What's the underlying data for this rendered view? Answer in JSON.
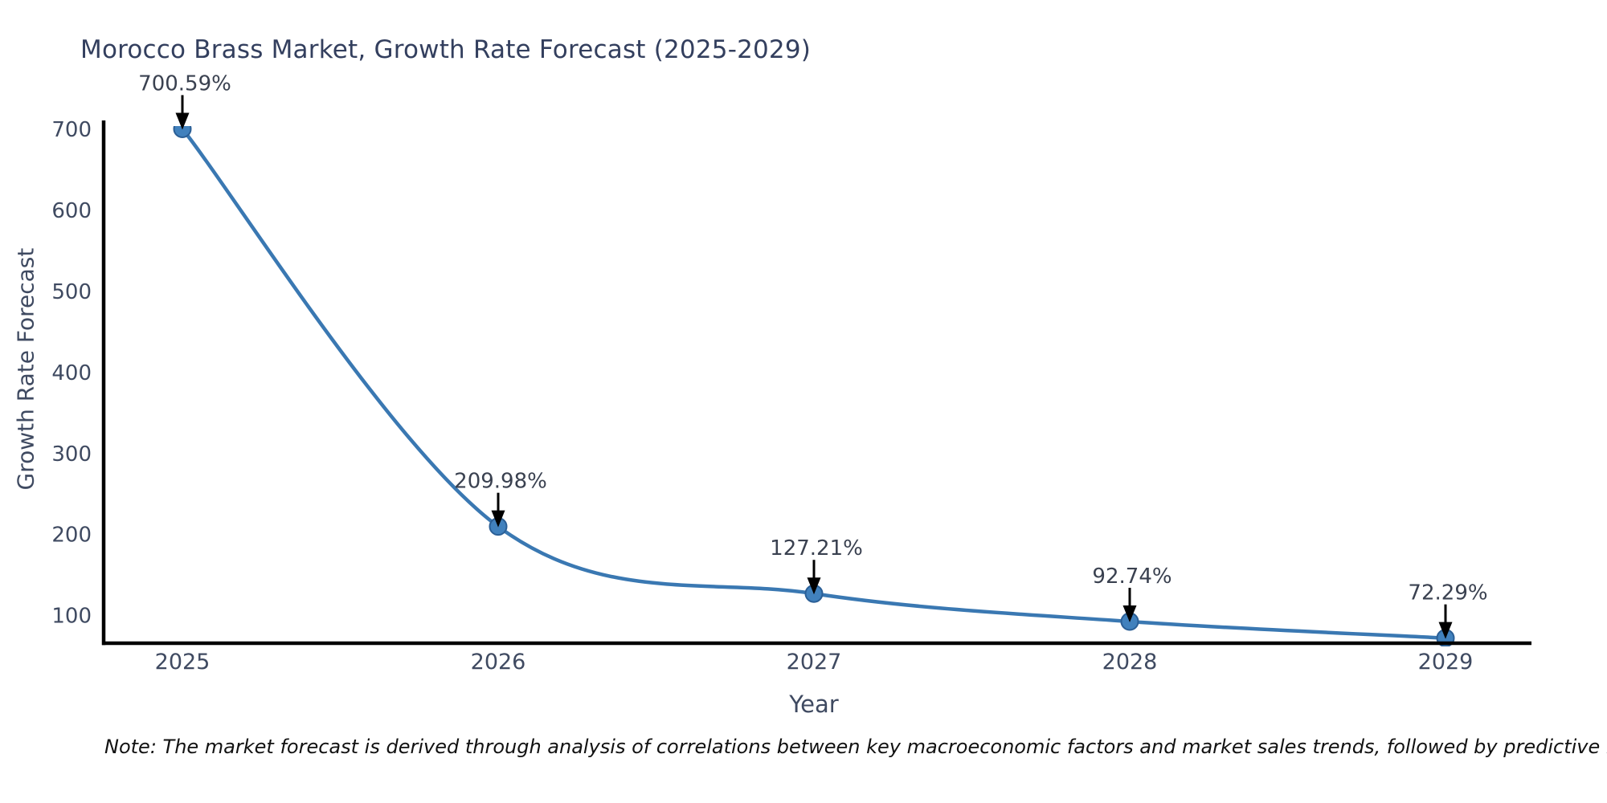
{
  "title": "Morocco Brass Market, Growth Rate Forecast (2025-2029)",
  "note": "Note: The market forecast is derived through analysis of correlations between key macroeconomic factors and market sales trends, followed by predictive modeling to project future sales.",
  "chart_data": {
    "type": "line",
    "title": "Morocco Brass Market, Growth Rate Forecast (2025-2029)",
    "xlabel": "Year",
    "ylabel": "Growth Rate Forecast",
    "categories": [
      "2025",
      "2026",
      "2027",
      "2028",
      "2029"
    ],
    "x": [
      2025,
      2026,
      2027,
      2028,
      2029
    ],
    "values": [
      700.59,
      209.98,
      127.21,
      92.74,
      72.29
    ],
    "point_labels": [
      "700.59%",
      "209.98%",
      "127.21%",
      "92.74%",
      "72.29%"
    ],
    "yticks": [
      100,
      200,
      300,
      400,
      500,
      600,
      700
    ],
    "ylim": [
      66,
      704
    ],
    "grid": false,
    "legend": "none",
    "smooth": true,
    "colors": {
      "line": "#3a78b2",
      "marker_fill": "#4181bd",
      "marker_edge": "#2b5f96",
      "annotation_text": "#3a4150",
      "annotation_arrow": "#000000",
      "axis_spine": "#000000",
      "tick_label": "#3f4a61",
      "title": "#333f5e"
    }
  }
}
